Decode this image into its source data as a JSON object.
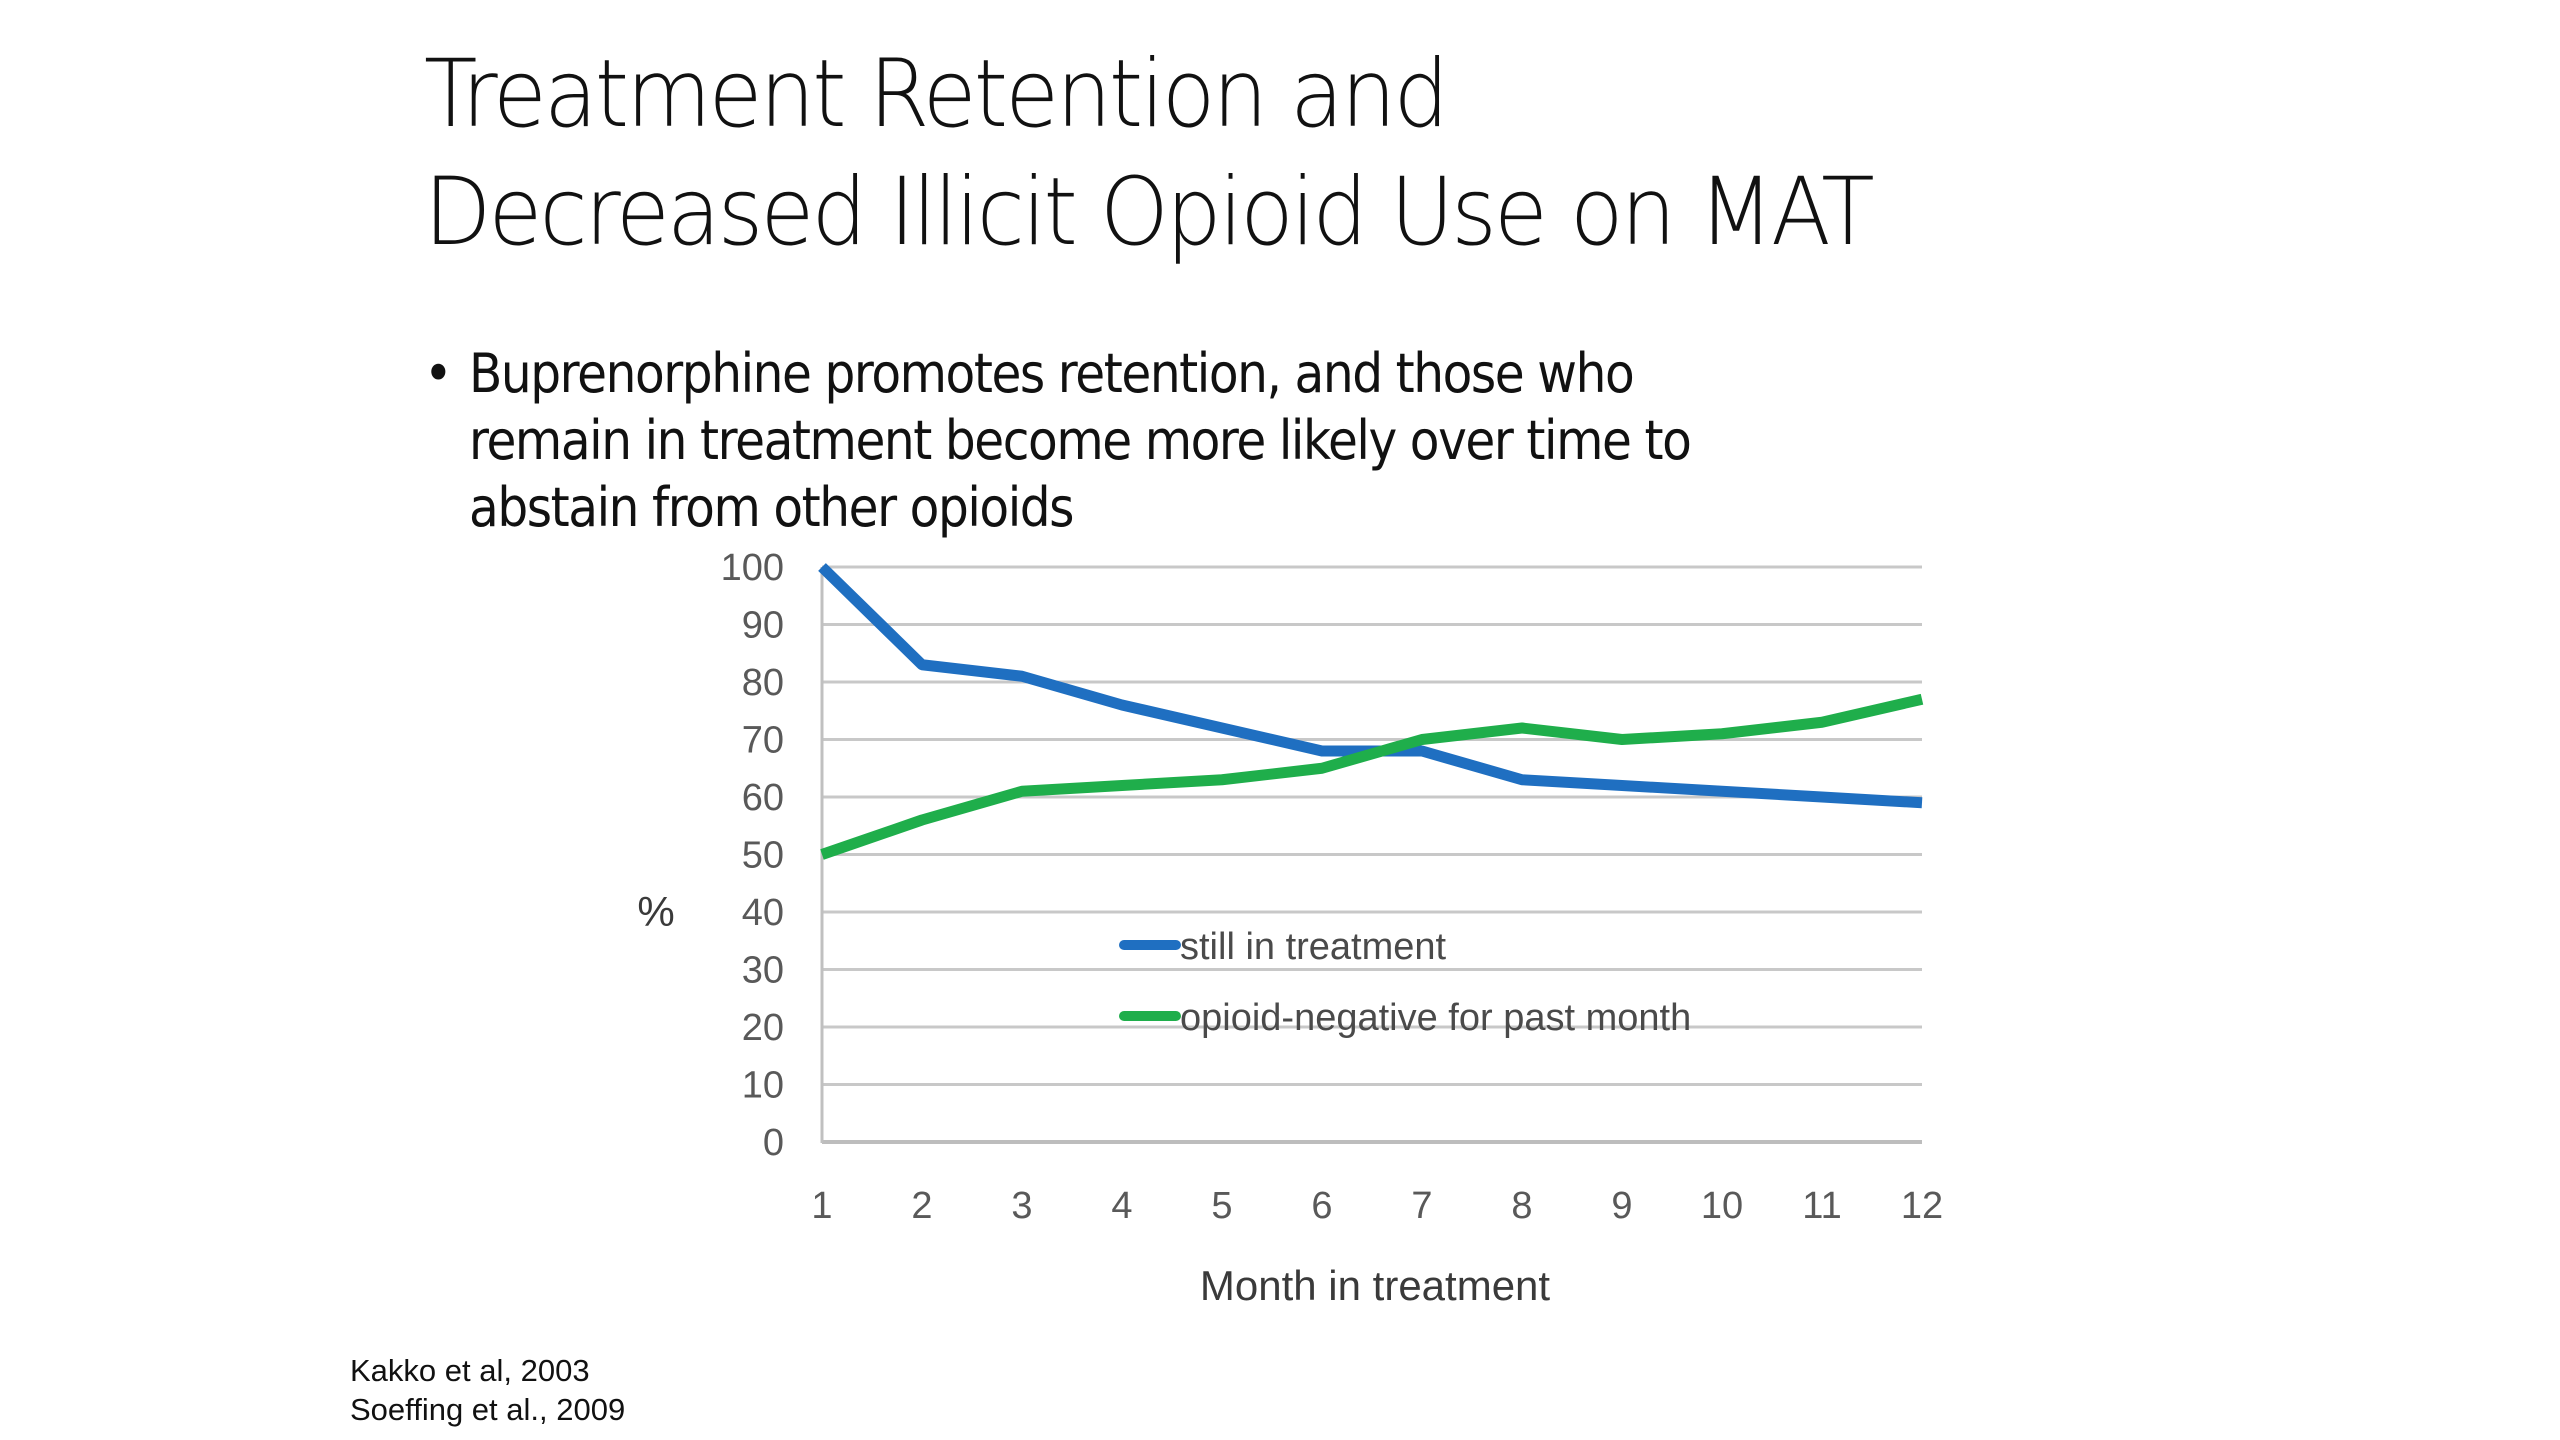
{
  "slide": {
    "title_lines": [
      "Treatment Retention and",
      "Decreased Illicit Opioid Use on MAT"
    ],
    "bullet": {
      "marker": "•",
      "lines": [
        "Buprenorphine promotes retention, and those who",
        "remain in treatment become more likely over time to",
        "abstain from other opioids"
      ]
    },
    "citations": [
      "Kakko et al, 2003",
      "Soeffing et al., 2009"
    ]
  },
  "chart_data": {
    "type": "line",
    "title": "",
    "xlabel": "Month in treatment",
    "ylabel": "%",
    "x": [
      1,
      2,
      3,
      4,
      5,
      6,
      7,
      8,
      9,
      10,
      11,
      12
    ],
    "x_tick_labels": [
      "1",
      "2",
      "3",
      "4",
      "5",
      "6",
      "7",
      "8",
      "9",
      "10",
      "11",
      "12"
    ],
    "y_tick_labels": [
      "0",
      "10",
      "20",
      "30",
      "40",
      "50",
      "60",
      "70",
      "80",
      "90",
      "100"
    ],
    "yticks": [
      0,
      10,
      20,
      30,
      40,
      50,
      60,
      70,
      80,
      90,
      100
    ],
    "ylim": [
      0,
      100
    ],
    "xlim": [
      1,
      12
    ],
    "grid": true,
    "legend_position": "center-bottom inside plot",
    "series": [
      {
        "name": "still in treatment",
        "color": "#1f6fc1",
        "values": [
          100,
          83,
          81,
          76,
          72,
          68,
          68,
          63,
          62,
          61,
          60,
          59
        ]
      },
      {
        "name": "opioid-negative for past month",
        "color": "#1fae4b",
        "values": [
          50,
          56,
          61,
          62,
          63,
          65,
          70,
          72,
          70,
          71,
          73,
          77
        ]
      }
    ]
  }
}
